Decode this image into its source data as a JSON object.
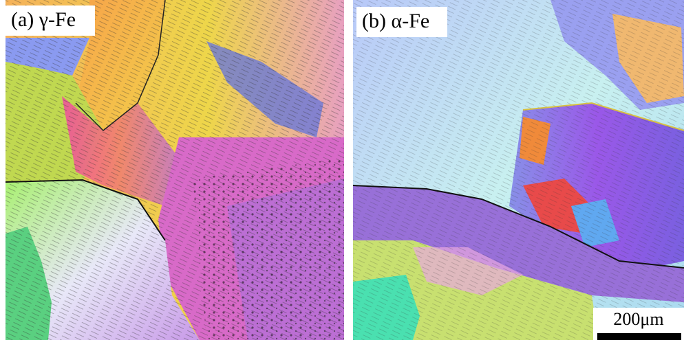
{
  "panels": [
    {
      "label": "(a) γ-Fe"
    },
    {
      "label": "(b) α-Fe"
    }
  ],
  "scale_bar": {
    "label": "200μm"
  }
}
